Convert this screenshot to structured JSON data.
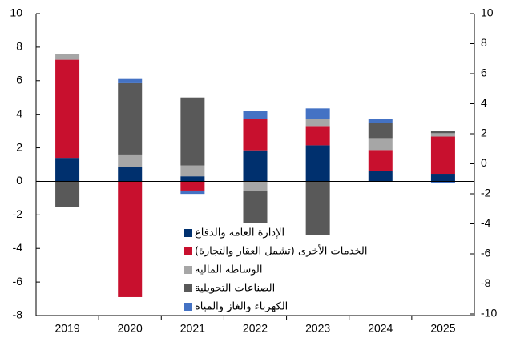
{
  "chart_data": {
    "type": "bar",
    "stacked": true,
    "categories": [
      "2019",
      "2020",
      "2021",
      "2022",
      "2023",
      "2024",
      "2025"
    ],
    "series": [
      {
        "name": "الإدارة العامة والدفاع",
        "color": "#00306e",
        "values": [
          1.4,
          0.85,
          0.3,
          1.85,
          2.15,
          0.6,
          0.45
        ]
      },
      {
        "name": "الخدمات الأخرى (تشمل العقار والتجارة)",
        "color": "#c8102e",
        "values": [
          5.85,
          -6.9,
          -0.55,
          1.87,
          1.15,
          1.27,
          2.22
        ]
      },
      {
        "name": "الوساطة المالية",
        "color": "#a6a6a6",
        "values": [
          0.35,
          0.75,
          0.65,
          -0.6,
          0.42,
          0.71,
          0.2
        ]
      },
      {
        "name": "الصناعات التحويلية",
        "color": "#595959",
        "values": [
          -1.53,
          4.25,
          4.05,
          -1.9,
          -3.2,
          0.91,
          0.13
        ]
      },
      {
        "name": "الكهرباء والغاز والمياه",
        "color": "#4472c4",
        "values": [
          0,
          0.25,
          -0.2,
          0.48,
          0.63,
          0.23,
          -0.1
        ]
      }
    ],
    "ylim": [
      -8,
      10
    ],
    "yticks": [
      -8,
      -6,
      -4,
      -2,
      0,
      2,
      4,
      6,
      8,
      10
    ],
    "y2lim": [
      -10,
      10
    ],
    "y2ticks": [
      -10,
      -8,
      -6,
      -4,
      -2,
      0,
      2,
      4,
      6,
      8,
      10
    ]
  }
}
